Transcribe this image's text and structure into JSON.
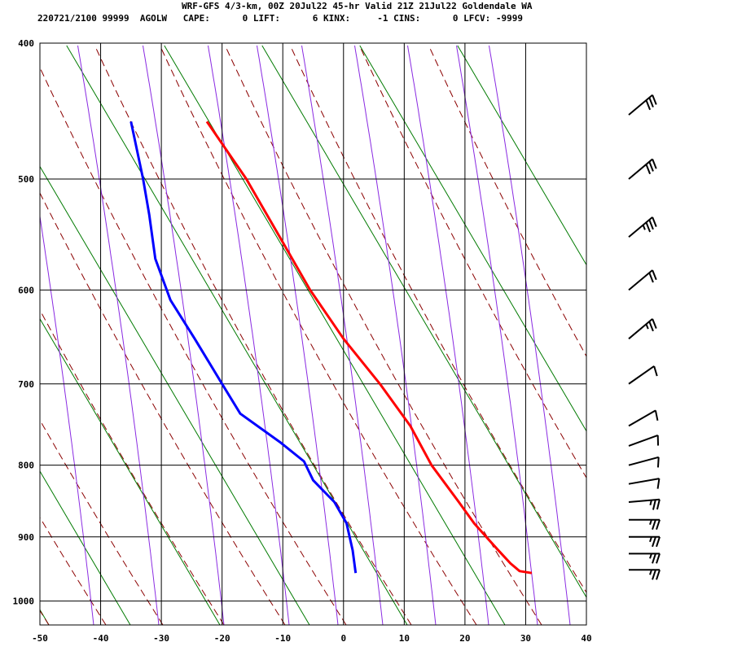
{
  "header": {
    "title": "WRF-GFS 4/3-km, 00Z 20Jul22 45-hr Valid 21Z 21Jul22 Goldendale WA",
    "subtitle": "220721/2100 99999  AGOLW   CAPE:      0 LIFT:      6 KINX:     -1 CINS:      0 LFCV: -9999"
  },
  "chart_data": {
    "type": "line",
    "title": "Skew-T log-P sounding",
    "xlim": [
      -50,
      40
    ],
    "ylim": [
      1040,
      400
    ],
    "y_scale": "log",
    "y_ticks": [
      400,
      500,
      600,
      700,
      800,
      900,
      1000
    ],
    "x_ticks": [
      -50,
      -40,
      -30,
      -20,
      -10,
      0,
      10,
      20,
      30,
      40
    ],
    "grid": true,
    "series": [
      {
        "name": "",
        "color": "#ff0000",
        "points": [
          {
            "p": 955,
            "t": 31
          },
          {
            "p": 952,
            "t": 29
          },
          {
            "p": 940,
            "t": 27.5
          },
          {
            "p": 920,
            "t": 25.5
          },
          {
            "p": 900,
            "t": 23.5
          },
          {
            "p": 880,
            "t": 21.5
          },
          {
            "p": 850,
            "t": 19
          },
          {
            "p": 800,
            "t": 14.5
          },
          {
            "p": 750,
            "t": 11
          },
          {
            "p": 700,
            "t": 6
          },
          {
            "p": 650,
            "t": 0
          },
          {
            "p": 600,
            "t": -5.5
          },
          {
            "p": 550,
            "t": -10.5
          },
          {
            "p": 500,
            "t": -16
          },
          {
            "p": 455,
            "t": -22.5
          }
        ]
      },
      {
        "name": "",
        "color": "#0000ff",
        "points": [
          {
            "p": 955,
            "t": 2
          },
          {
            "p": 920,
            "t": 1.5
          },
          {
            "p": 880,
            "t": 0.5
          },
          {
            "p": 850,
            "t": -1.5
          },
          {
            "p": 820,
            "t": -5
          },
          {
            "p": 795,
            "t": -6.5
          },
          {
            "p": 770,
            "t": -10.5
          },
          {
            "p": 735,
            "t": -17
          },
          {
            "p": 700,
            "t": -20
          },
          {
            "p": 650,
            "t": -24.5
          },
          {
            "p": 610,
            "t": -28.5
          },
          {
            "p": 570,
            "t": -31
          },
          {
            "p": 530,
            "t": -32
          },
          {
            "p": 500,
            "t": -33
          },
          {
            "p": 455,
            "t": -35
          }
        ]
      }
    ],
    "background_lines": {
      "isotherm_color": "#000000",
      "dry_adiabat_color": "#8b0000",
      "moist_adiabat_color": "#8a2be2",
      "mixing_ratio_color": "#007a00"
    },
    "wind_barbs": {
      "color": "#000000",
      "levels": [
        {
          "p": 950,
          "speed_kt": 15,
          "dir": 270
        },
        {
          "p": 925,
          "speed_kt": 15,
          "dir": 270
        },
        {
          "p": 900,
          "speed_kt": 15,
          "dir": 270
        },
        {
          "p": 875,
          "speed_kt": 15,
          "dir": 270
        },
        {
          "p": 850,
          "speed_kt": 15,
          "dir": 265
        },
        {
          "p": 825,
          "speed_kt": 10,
          "dir": 260
        },
        {
          "p": 800,
          "speed_kt": 10,
          "dir": 255
        },
        {
          "p": 775,
          "speed_kt": 10,
          "dir": 250
        },
        {
          "p": 750,
          "speed_kt": 10,
          "dir": 240
        },
        {
          "p": 700,
          "speed_kt": 10,
          "dir": 235
        },
        {
          "p": 650,
          "speed_kt": 15,
          "dir": 230
        },
        {
          "p": 600,
          "speed_kt": 20,
          "dir": 230
        },
        {
          "p": 550,
          "speed_kt": 25,
          "dir": 230
        },
        {
          "p": 500,
          "speed_kt": 30,
          "dir": 230
        },
        {
          "p": 450,
          "speed_kt": 30,
          "dir": 230
        }
      ]
    }
  }
}
